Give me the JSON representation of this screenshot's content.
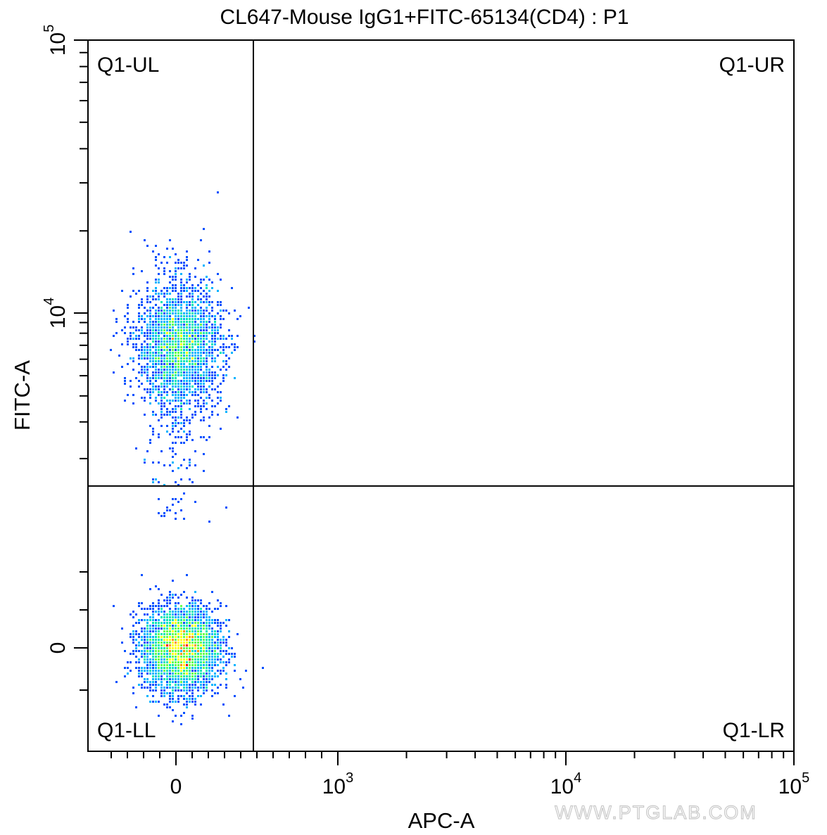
{
  "chart_data": {
    "type": "scatter",
    "subtype": "flow-cytometry-density-dot-plot",
    "title": "CL647-Mouse IgG1+FITC-65134(CD4) : P1",
    "xlabel": "APC-A",
    "ylabel": "FITC-A",
    "x_scale": "biexponential",
    "y_scale": "biexponential",
    "xlim": [
      -400,
      100000
    ],
    "ylim": [
      -400,
      100000
    ],
    "x_ticks": [
      {
        "value": 0,
        "base": "0",
        "exp": ""
      },
      {
        "value": 1000,
        "base": "10",
        "exp": "3"
      },
      {
        "value": 10000,
        "base": "10",
        "exp": "4"
      },
      {
        "value": 100000,
        "base": "10",
        "exp": "5"
      }
    ],
    "y_ticks": [
      {
        "value": 0,
        "base": "0",
        "exp": ""
      },
      {
        "value": 10000,
        "base": "10",
        "exp": "4"
      },
      {
        "value": 100000,
        "base": "10",
        "exp": "5"
      }
    ],
    "gates": {
      "x": 500,
      "y": 1500
    },
    "quadrants": [
      {
        "id": "UL",
        "label": "Q1-UL",
        "position": "top-left"
      },
      {
        "id": "UR",
        "label": "Q1-UR",
        "position": "top-right"
      },
      {
        "id": "LL",
        "label": "Q1-LL",
        "position": "bottom-left"
      },
      {
        "id": "LR",
        "label": "Q1-LR",
        "position": "bottom-right"
      }
    ],
    "populations": [
      {
        "name": "",
        "center": {
          "x": 20,
          "y": 7000
        },
        "spread_x": 130,
        "spread_y_log": 0.14,
        "count": 2600
      },
      {
        "name": "",
        "center": {
          "x": 30,
          "y": 0
        },
        "spread_x": 120,
        "spread_y": 160,
        "count": 3600
      }
    ],
    "density_colors": [
      "#0000c8",
      "#0050ff",
      "#00b4ff",
      "#00e6b4",
      "#64ff50",
      "#ffff00",
      "#ff9600",
      "#ff0000"
    ],
    "grid": false,
    "legend": "none"
  },
  "watermark": "WWW.PTGLAB.COM"
}
